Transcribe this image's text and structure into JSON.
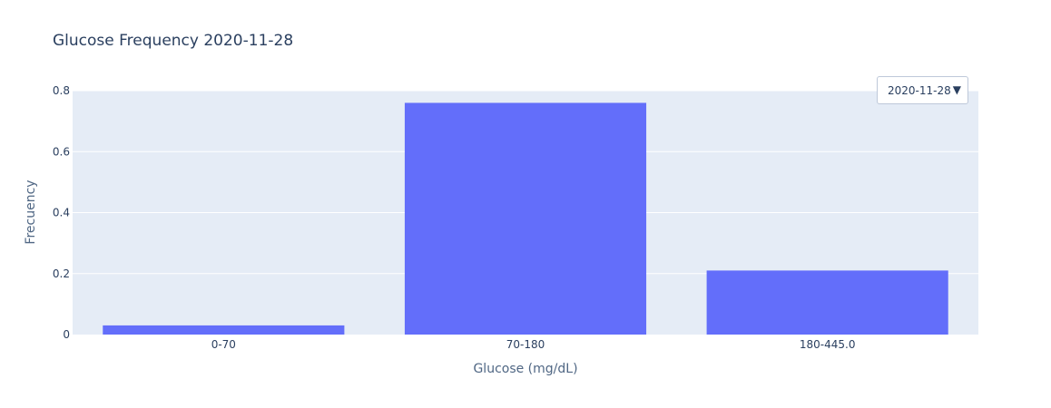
{
  "chart_data": {
    "type": "bar",
    "title": "Glucose Frequency 2020-11-28",
    "xlabel": "Glucose (mg/dL)",
    "ylabel": "Frecuency",
    "categories": [
      "0-70",
      "70-180",
      "180-445.0"
    ],
    "values": [
      0.03,
      0.76,
      0.21
    ],
    "ylim": [
      0,
      0.8
    ],
    "yticks": [
      "0",
      "0.2",
      "0.4",
      "0.6",
      "0.8"
    ],
    "ytick_values": [
      0,
      0.2,
      0.4,
      0.6,
      0.8
    ],
    "grid": true,
    "bar_color": "#636efa",
    "plot_bgcolor": "#e5ecf6"
  },
  "dropdown": {
    "selected": "2020-11-28",
    "arrow_icon": "triangle-down-icon"
  }
}
